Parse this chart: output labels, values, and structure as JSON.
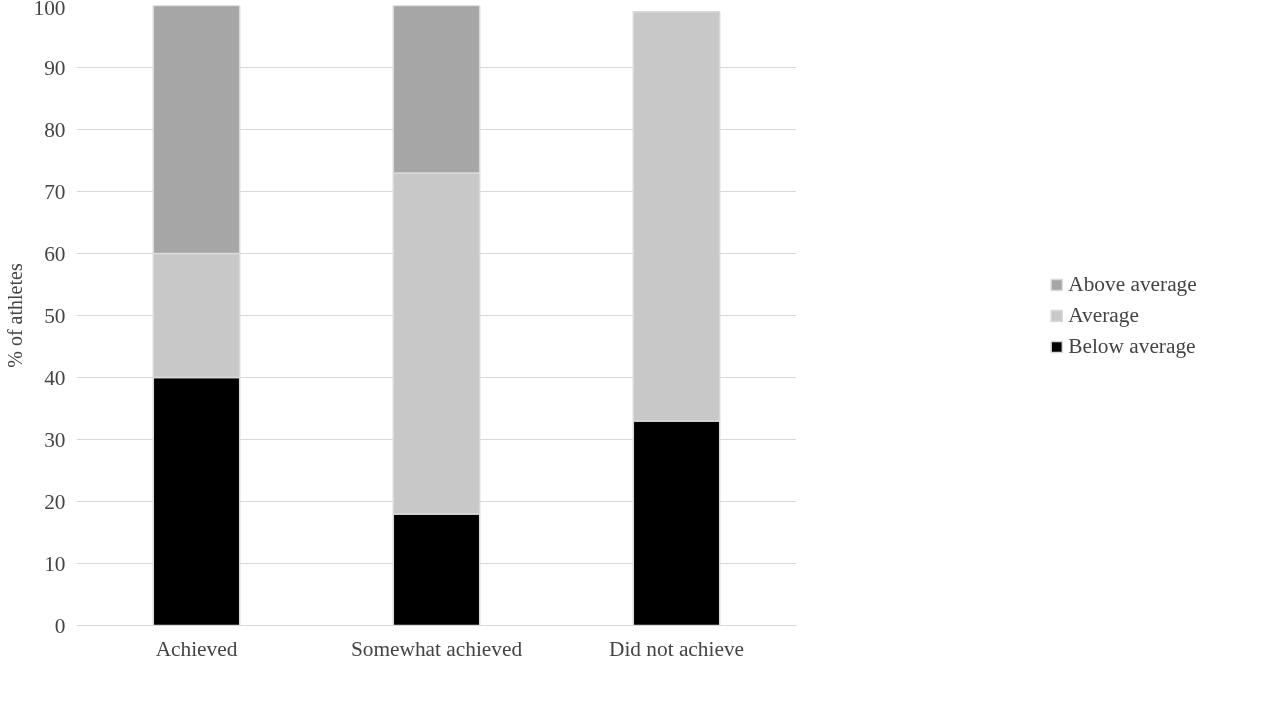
{
  "chart_data": {
    "type": "bar",
    "stacked": true,
    "ylabel": "% of athletes",
    "categories": [
      "Achieved",
      "Somewhat achieved",
      "Did not achieve"
    ],
    "series": [
      {
        "name": "Below average",
        "color": "#000000",
        "values": [
          40,
          18,
          33
        ]
      },
      {
        "name": "Average",
        "color": "#c8c8c8",
        "values": [
          20,
          55,
          66
        ]
      },
      {
        "name": "Above average",
        "color": "#a6a6a6",
        "values": [
          40,
          27,
          0
        ]
      }
    ],
    "ylim": [
      0,
      100
    ],
    "yticks": [
      0,
      10,
      20,
      30,
      40,
      50,
      60,
      70,
      80,
      90,
      100
    ],
    "grid": "y",
    "legend": "right"
  }
}
